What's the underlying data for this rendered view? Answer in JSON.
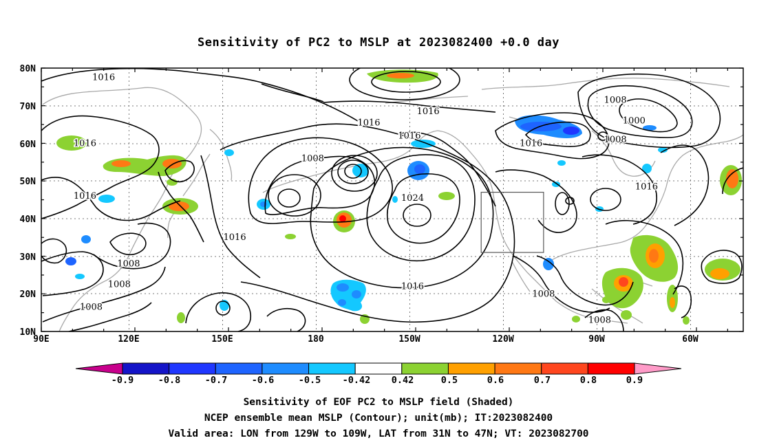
{
  "title": "Sensitivity of PC2 to MSLP at 2023082400 +0.0 day",
  "map": {
    "lon_ticks": [
      "90E",
      "120E",
      "150E",
      "180",
      "150W",
      "120W",
      "90W",
      "60W"
    ],
    "lat_ticks": [
      "80N",
      "70N",
      "60N",
      "50N",
      "40N",
      "30N",
      "20N",
      "10N"
    ],
    "valid_box": {
      "lon": [
        -129,
        -109
      ],
      "lat": [
        31,
        47
      ]
    },
    "contour_labels": [
      {
        "text": "1016",
        "lon": 110,
        "lat": 77.5
      },
      {
        "text": "1016",
        "lon": -146,
        "lat": 68.5
      },
      {
        "text": "1016",
        "lon": -165,
        "lat": 65.5
      },
      {
        "text": "1016",
        "lon": -152,
        "lat": 62
      },
      {
        "text": "1008",
        "lon": 177,
        "lat": 56
      },
      {
        "text": "1024",
        "lon": -151,
        "lat": 45.5
      },
      {
        "text": "1016",
        "lon": 104,
        "lat": 60
      },
      {
        "text": "1016",
        "lon": 104,
        "lat": 46
      },
      {
        "text": "1016",
        "lon": 152,
        "lat": 35
      },
      {
        "text": "1008",
        "lon": 118,
        "lat": 28
      },
      {
        "text": "1008",
        "lon": 115,
        "lat": 22.5
      },
      {
        "text": "1008",
        "lon": 106,
        "lat": 16.5
      },
      {
        "text": "1016",
        "lon": -151,
        "lat": 22
      },
      {
        "text": "1016",
        "lon": -113,
        "lat": 60
      },
      {
        "text": "1008",
        "lon": -86,
        "lat": 71.5
      },
      {
        "text": "1000",
        "lon": -80,
        "lat": 66
      },
      {
        "text": "1008",
        "lon": -86,
        "lat": 61
      },
      {
        "text": "1016",
        "lon": -76,
        "lat": 48.5
      },
      {
        "text": "1008",
        "lon": -109,
        "lat": 20
      },
      {
        "text": "1008",
        "lon": -91,
        "lat": 13
      }
    ]
  },
  "colorbar": {
    "labels": [
      "-0.9",
      "-0.8",
      "-0.7",
      "-0.6",
      "-0.5",
      "-0.42",
      "0.42",
      "0.5",
      "0.6",
      "0.7",
      "0.8",
      "0.9"
    ],
    "colors": [
      "#1414c8",
      "#1f37ff",
      "#1e64ff",
      "#1e8cff",
      "#14c8ff",
      "#ffffff",
      "#8cd232",
      "#ffa000",
      "#ff7814",
      "#ff461e",
      "#ff0000"
    ],
    "under_color": "#c8008c",
    "over_color": "#ff9bc8"
  },
  "captions": [
    "Sensitivity of EOF PC2 to MSLP field (Shaded)",
    "NCEP ensemble mean MSLP (Contour); unit(mb); IT:2023082400",
    "Valid area: LON from 129W to 109W, LAT from 31N to 47N; VT: 2023082700"
  ]
}
